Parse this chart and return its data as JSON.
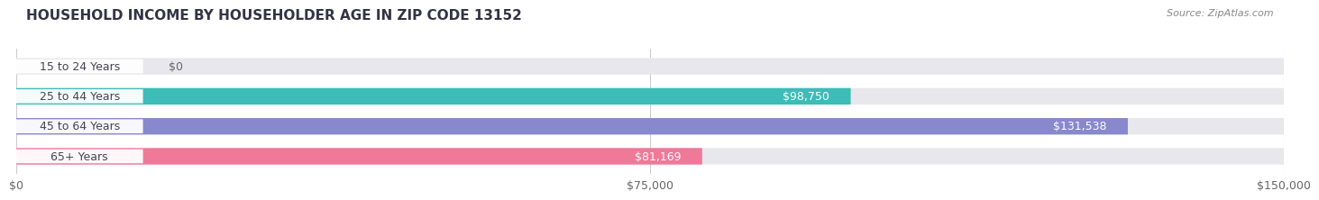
{
  "title": "HOUSEHOLD INCOME BY HOUSEHOLDER AGE IN ZIP CODE 13152",
  "source": "Source: ZipAtlas.com",
  "categories": [
    "15 to 24 Years",
    "25 to 44 Years",
    "45 to 64 Years",
    "65+ Years"
  ],
  "values": [
    0,
    98750,
    131538,
    81169
  ],
  "bar_colors": [
    "#c8a8cc",
    "#3dbcb8",
    "#8888cc",
    "#f07898"
  ],
  "bar_bg_color": "#e8e8ec",
  "xmax": 150000,
  "xticks": [
    0,
    75000,
    150000
  ],
  "xticklabels": [
    "$0",
    "$75,000",
    "$150,000"
  ],
  "background_color": "#ffffff",
  "label_fontsize": 9,
  "value_fontsize": 9,
  "title_fontsize": 11,
  "source_fontsize": 8
}
